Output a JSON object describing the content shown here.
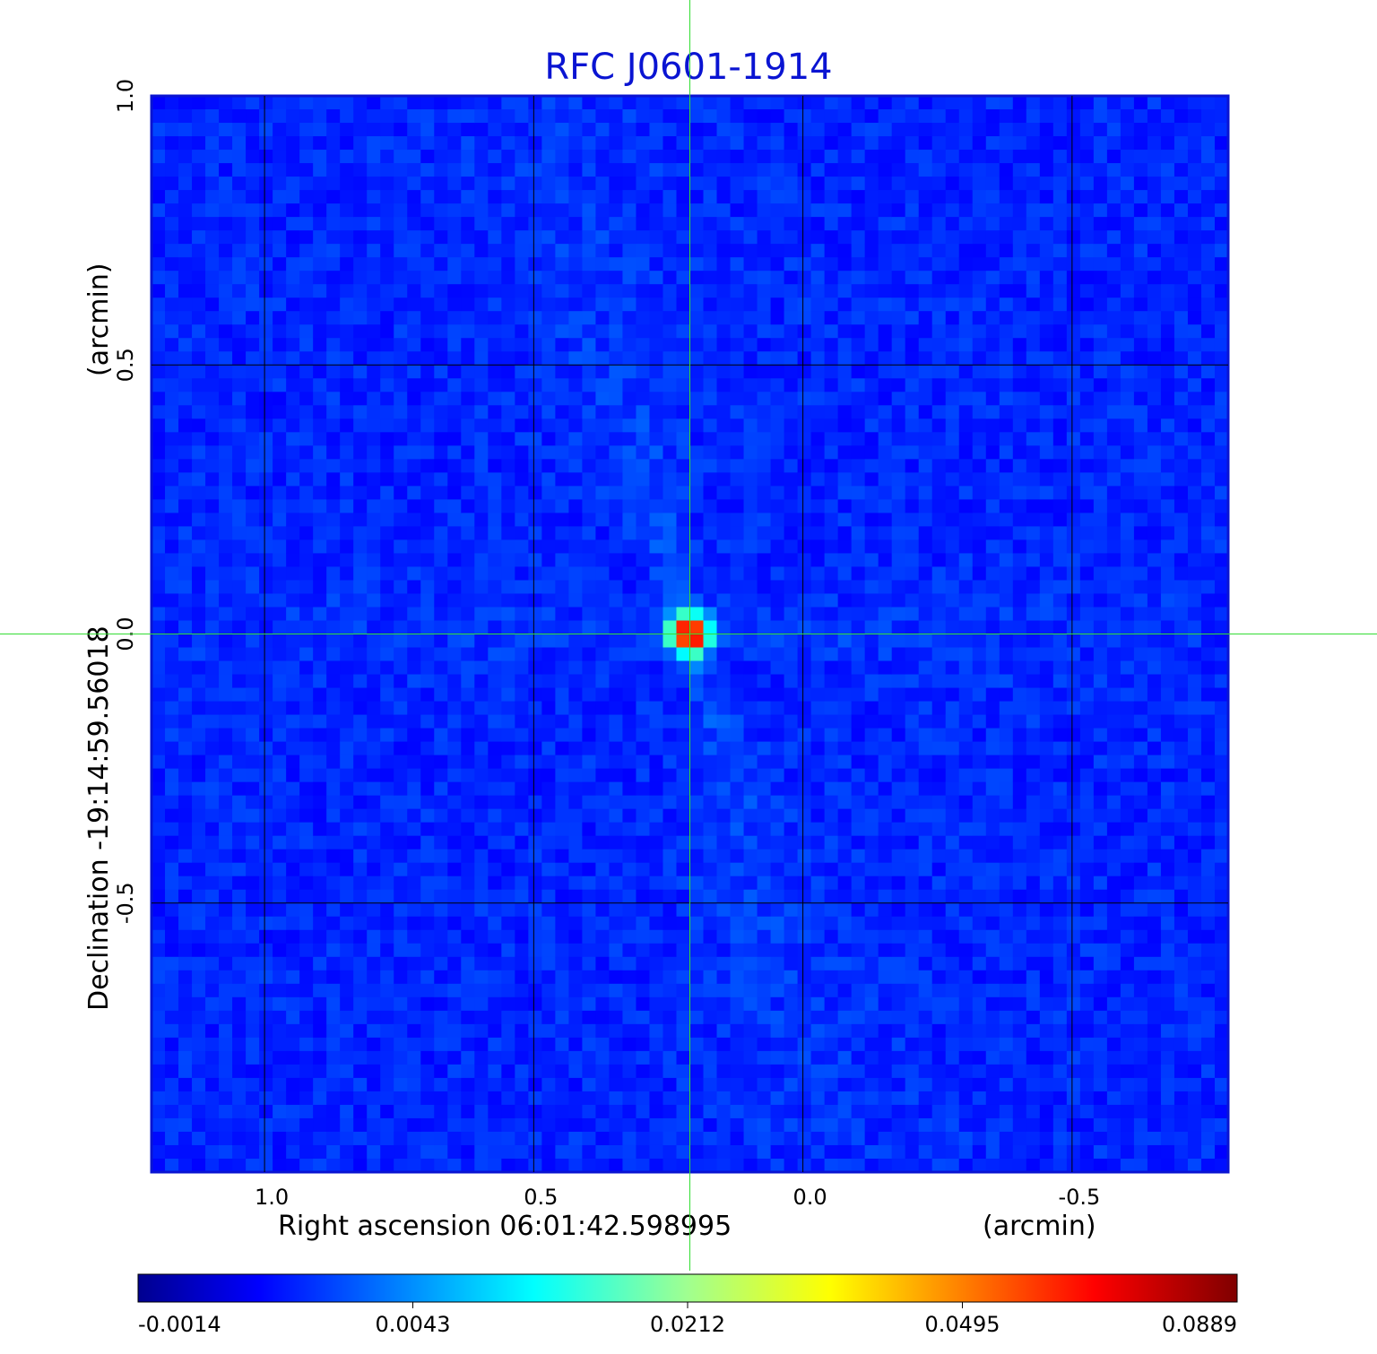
{
  "chart_data": {
    "type": "heatmap",
    "title": "RFC J0601-1914",
    "title_color": "#0a14d2",
    "xlabel": "Right ascension  06:01:42.598995",
    "xunit": "(arcmin)",
    "ylabel": "Declination  -19:14:59.56018",
    "yunit": "(arcmin)",
    "xlim": [
      1.21,
      -0.79
    ],
    "ylim": [
      -1.0,
      1.0
    ],
    "x_ticks": [
      1.0,
      0.5,
      0.0,
      -0.5
    ],
    "x_tick_labels": [
      "1.0",
      "0.5",
      "0.0",
      "-0.5"
    ],
    "y_ticks": [
      1.0,
      0.5,
      0.0,
      -0.5
    ],
    "y_tick_labels": [
      "1.0",
      "0.5",
      "0.0",
      "-0.5"
    ],
    "grid": true,
    "background_level_color": "#1e4df0",
    "source": {
      "x": 0.21,
      "y": 0.0,
      "peak": 0.0889
    },
    "crosshair": {
      "x": 0.21,
      "y": 0.0,
      "color": "#33dd33"
    },
    "colorbar": {
      "ticks": [
        -0.0014,
        0.0043,
        0.0212,
        0.0495,
        0.0889
      ],
      "tick_labels": [
        "-0.0014",
        "0.0043",
        "0.0212",
        "0.0495",
        "0.0889"
      ],
      "colormap": "jet"
    }
  }
}
